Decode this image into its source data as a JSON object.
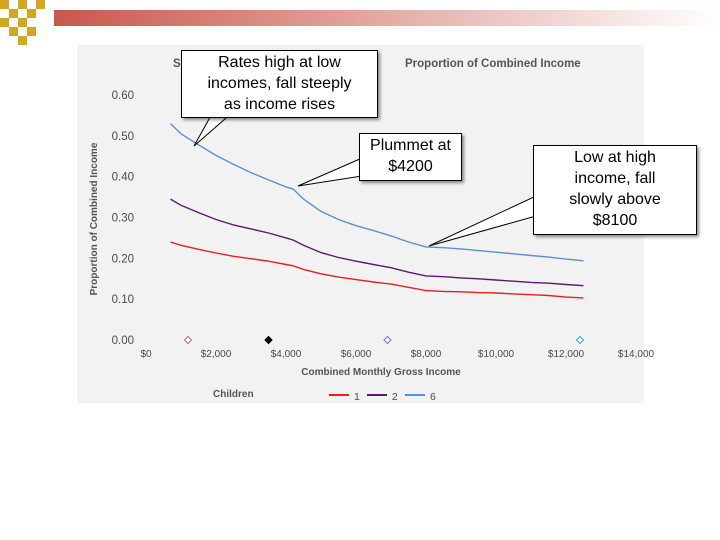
{
  "chart_data": {
    "type": "line",
    "title": "Proportion of Combined Income",
    "title_prefix": "S",
    "xlabel": "Combined Monthly Gross Income",
    "ylabel": "Proportion of Combined Income",
    "xlim": [
      0,
      14000
    ],
    "ylim": [
      0,
      0.6
    ],
    "x_ticks": [
      0,
      2000,
      4000,
      6000,
      8000,
      10000,
      12000,
      14000
    ],
    "x_tick_labels": [
      "$0",
      "$2,000",
      "$4,000",
      "$6,000",
      "$8,000",
      "$10,000",
      "$12,000",
      "$14,000"
    ],
    "y_ticks": [
      0,
      0.1,
      0.2,
      0.3,
      0.4,
      0.5,
      0.6
    ],
    "y_tick_labels": [
      "0.00",
      "0.10",
      "0.20",
      "0.30",
      "0.40",
      "0.50",
      "0.60"
    ],
    "legend_title": "Children",
    "legend_position": "bottom",
    "series": [
      {
        "name": "1",
        "color": "#e8201f",
        "x": [
          700,
          1000,
          1500,
          2000,
          2500,
          3000,
          3500,
          4000,
          4200,
          4500,
          5000,
          5500,
          6000,
          6500,
          7000,
          7500,
          8000,
          8500,
          9000,
          9500,
          10000,
          10500,
          11000,
          11500,
          12000,
          12500
        ],
        "y": [
          0.24,
          0.232,
          0.222,
          0.213,
          0.205,
          0.199,
          0.193,
          0.185,
          0.182,
          0.173,
          0.162,
          0.154,
          0.148,
          0.142,
          0.137,
          0.129,
          0.121,
          0.119,
          0.118,
          0.116,
          0.115,
          0.113,
          0.111,
          0.109,
          0.105,
          0.103
        ]
      },
      {
        "name": "2",
        "color": "#5b1a6e",
        "x": [
          700,
          1000,
          1500,
          2000,
          2500,
          3000,
          3500,
          4000,
          4200,
          4500,
          5000,
          5500,
          6000,
          6500,
          7000,
          7500,
          8000,
          8500,
          9000,
          9500,
          10000,
          10500,
          11000,
          11500,
          12000,
          12500
        ],
        "y": [
          0.345,
          0.33,
          0.312,
          0.295,
          0.282,
          0.272,
          0.262,
          0.25,
          0.245,
          0.232,
          0.214,
          0.202,
          0.193,
          0.185,
          0.177,
          0.166,
          0.157,
          0.155,
          0.152,
          0.15,
          0.147,
          0.144,
          0.141,
          0.139,
          0.136,
          0.133
        ]
      },
      {
        "name": "6",
        "color": "#5b8fd3",
        "x": [
          700,
          1000,
          1500,
          2000,
          2500,
          3000,
          3500,
          4000,
          4200,
          4500,
          5000,
          5500,
          6000,
          6500,
          7000,
          7500,
          8000,
          8500,
          9000,
          9500,
          10000,
          10500,
          11000,
          11500,
          12000,
          12500
        ],
        "y": [
          0.53,
          0.505,
          0.478,
          0.452,
          0.43,
          0.41,
          0.392,
          0.375,
          0.37,
          0.345,
          0.315,
          0.295,
          0.28,
          0.268,
          0.255,
          0.24,
          0.228,
          0.226,
          0.223,
          0.219,
          0.215,
          0.211,
          0.207,
          0.203,
          0.198,
          0.194
        ]
      }
    ],
    "axis_markers": [
      {
        "x": 1200,
        "shape": "diamond",
        "color": "#c06090",
        "filled": false
      },
      {
        "x": 3500,
        "shape": "diamond",
        "color": "#000000",
        "filled": true
      },
      {
        "x": 6900,
        "shape": "diamond",
        "color": "#9060c0",
        "filled": false
      },
      {
        "x": 12400,
        "shape": "diamond",
        "color": "#20a8c0",
        "filled": false
      }
    ]
  },
  "callouts": [
    {
      "id": "high-low",
      "lines": [
        "Rates high at low",
        "incomes, fall steeply",
        "as income rises"
      ]
    },
    {
      "id": "plummet",
      "lines": [
        "Plummet at",
        "$4200"
      ]
    },
    {
      "id": "low-high",
      "lines": [
        "Low at high",
        "income, fall",
        "slowly above",
        "$8100"
      ]
    }
  ],
  "colors": {
    "panel": "#f2f2f2",
    "deco_gold": "#d4a81e",
    "deco_fade": "#c0392b",
    "axis_text": "#4a4a4a"
  }
}
